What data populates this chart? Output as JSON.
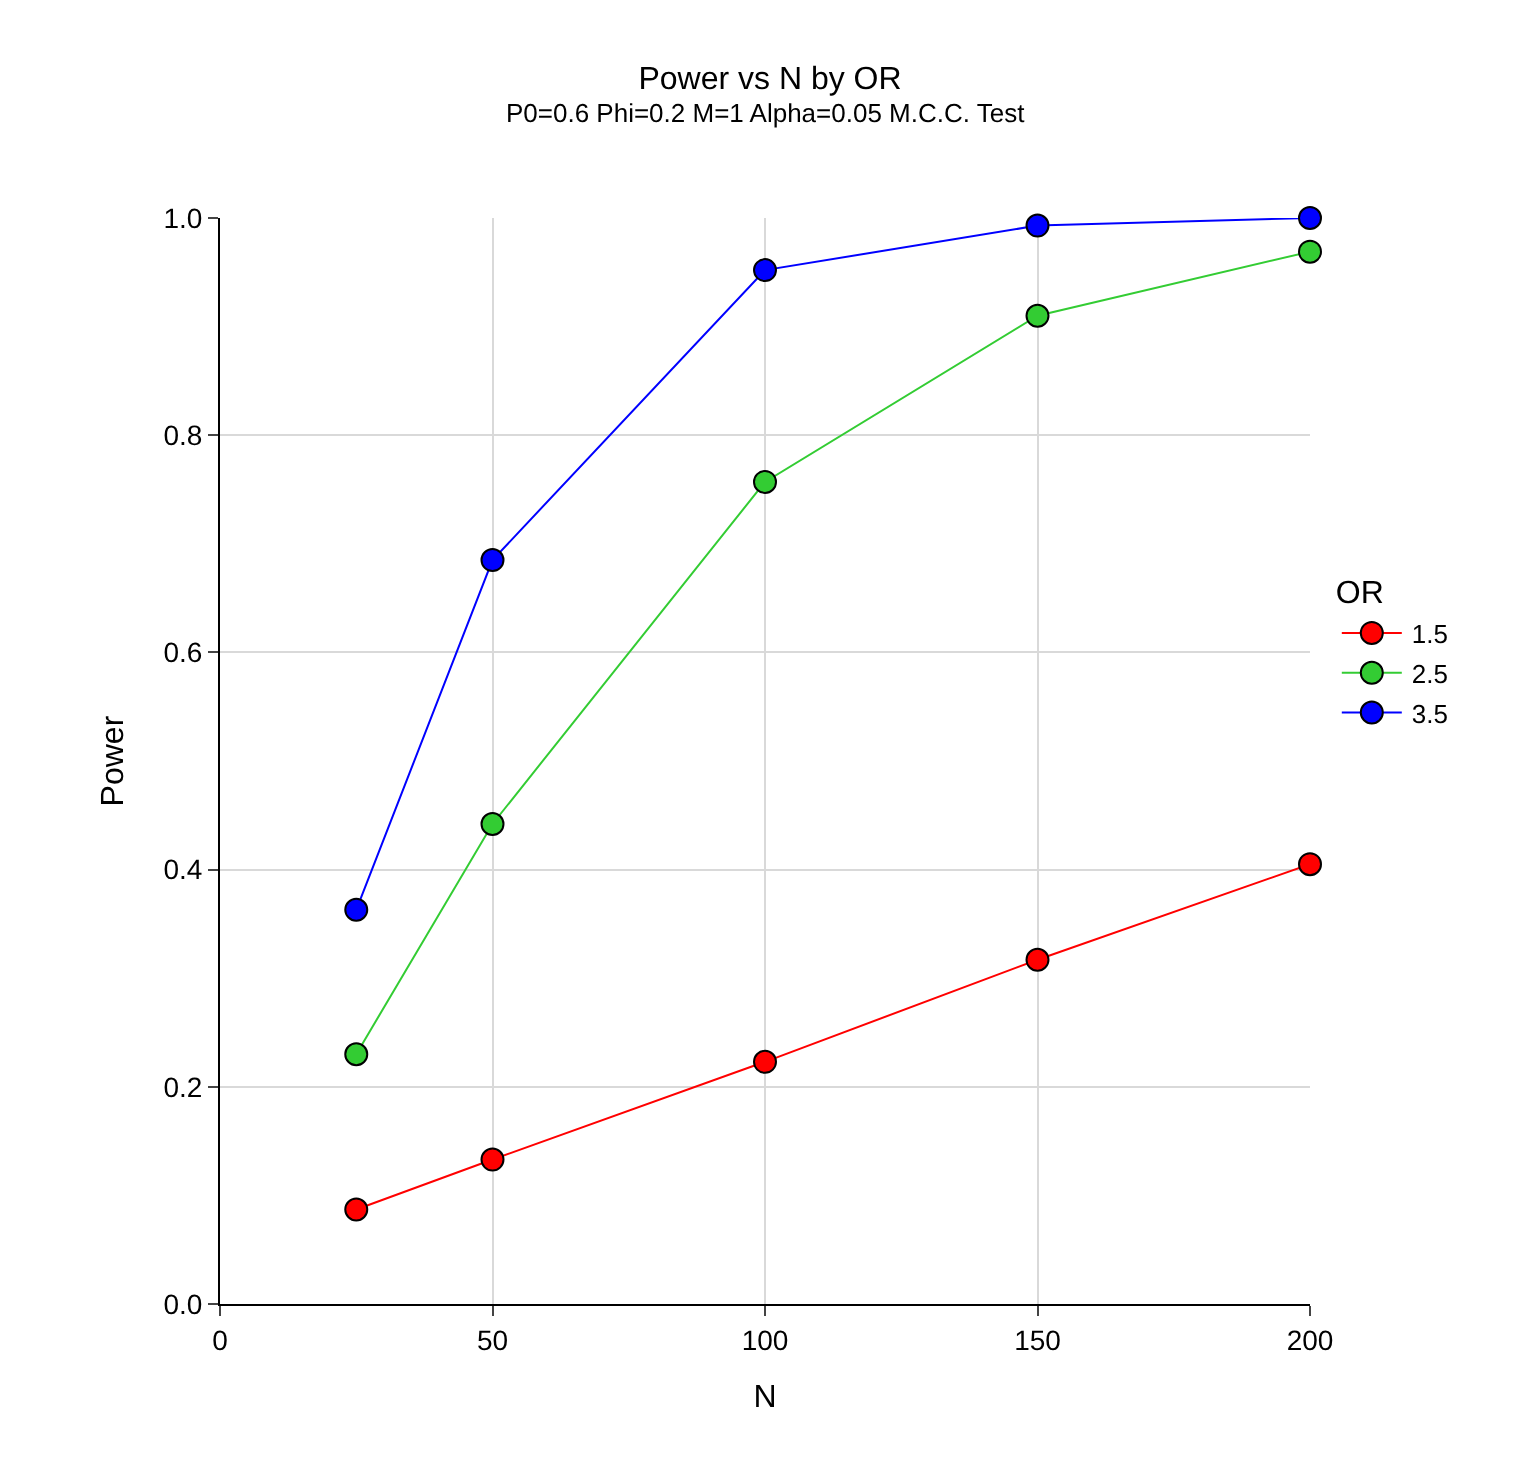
{
  "chart_data": {
    "type": "line",
    "title": "Power vs N by OR",
    "subtitle": "P0=0.6 Phi=0.2 M=1 Alpha=0.05 M.C.C. Test",
    "xlabel": "N",
    "ylabel": "Power",
    "legend_title": "OR",
    "x": [
      25,
      50,
      100,
      150,
      200
    ],
    "series": [
      {
        "name": "1.5",
        "color": "#ff0000",
        "values": [
          0.087,
          0.133,
          0.223,
          0.317,
          0.405
        ]
      },
      {
        "name": "2.5",
        "color": "#33cc33",
        "values": [
          0.23,
          0.442,
          0.757,
          0.91,
          0.969
        ]
      },
      {
        "name": "3.5",
        "color": "#0000ff",
        "values": [
          0.363,
          0.685,
          0.952,
          0.993,
          1.0
        ]
      }
    ],
    "xlim": [
      0,
      200
    ],
    "xticks": [
      0,
      50,
      100,
      150,
      200
    ],
    "ylim": [
      0,
      1.0
    ],
    "yticks": [
      {
        "value": 0,
        "label": "0.0"
      },
      {
        "value": 0.2,
        "label": "0.2"
      },
      {
        "value": 0.4,
        "label": "0.4"
      },
      {
        "value": 0.6,
        "label": "0.6"
      },
      {
        "value": 0.8,
        "label": "0.8"
      },
      {
        "value": 1.0,
        "label": "1.0"
      }
    ],
    "grid": true,
    "legend": "right",
    "marker": "circle",
    "line_style": "solid"
  }
}
